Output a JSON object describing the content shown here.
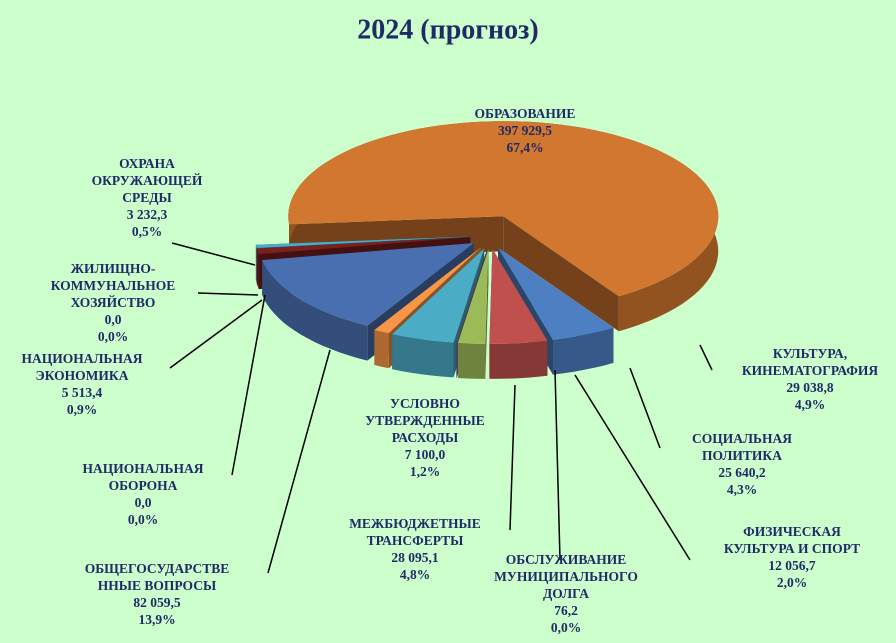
{
  "chart_data": {
    "type": "pie",
    "title": "2024 (прогноз)",
    "categories": [
      [
        "ОБРАЗОВАНИЕ"
      ],
      [
        "КУЛЬТУРА,",
        "КИНЕМАТОГРАФИЯ"
      ],
      [
        "СОЦИАЛЬНАЯ",
        "ПОЛИТИКА"
      ],
      [
        "ФИЗИЧЕСКАЯ",
        "КУЛЬТУРА И СПОРТ"
      ],
      [
        "ОБСЛУЖИВАНИЕ",
        "МУНИЦИПАЛЬНОГО",
        "ДОЛГА"
      ],
      [
        "МЕЖБЮДЖЕТНЫЕ",
        "ТРАНСФЕРТЫ"
      ],
      [
        "УСЛОВНО",
        "УТВЕРЖДЕННЫЕ",
        "РАСХОДЫ"
      ],
      [
        "ОБЩЕГОСУДАРСТВЕ",
        "ННЫЕ ВОПРОСЫ"
      ],
      [
        "НАЦИОНАЛЬНАЯ",
        "ОБОРОНА"
      ],
      [
        "НАЦИОНАЛЬНАЯ",
        "ЭКОНОМИКА"
      ],
      [
        "ЖИЛИЩНО-",
        "КОММУНАЛЬНОЕ",
        "ХОЗЯЙСТВО"
      ],
      [
        "ОХРАНА",
        "ОКРУЖАЮЩЕЙ",
        "СРЕДЫ"
      ]
    ],
    "values": [
      397929.5,
      29038.8,
      25640.2,
      12056.7,
      76.2,
      28095.1,
      7100.0,
      82059.5,
      0.0,
      5513.4,
      0.0,
      3232.3
    ],
    "value_labels": [
      "397 929,5",
      "29 038,8",
      "25 640,2",
      "12 056,7",
      "76,2",
      "28 095,1",
      "7 100,0",
      "82 059,5",
      "0,0",
      "5 513,4",
      "0,0",
      "3 232,3"
    ],
    "percent_labels": [
      "67,4%",
      "4,9%",
      "4,3%",
      "2,0%",
      "0,0%",
      "4,8%",
      "1,2%",
      "13,9%",
      "0,0%",
      "0,9%",
      "0,0%",
      "0,5%"
    ],
    "colors": [
      "#d2772f",
      "#4f7fc3",
      "#c0504d",
      "#9bbb59",
      "#8064a2",
      "#4bacc6",
      "#f79646",
      "#4a6fb0",
      "#8b2a2a",
      "#7b1f1f",
      "#9bbb59",
      "#4bacc6"
    ]
  }
}
